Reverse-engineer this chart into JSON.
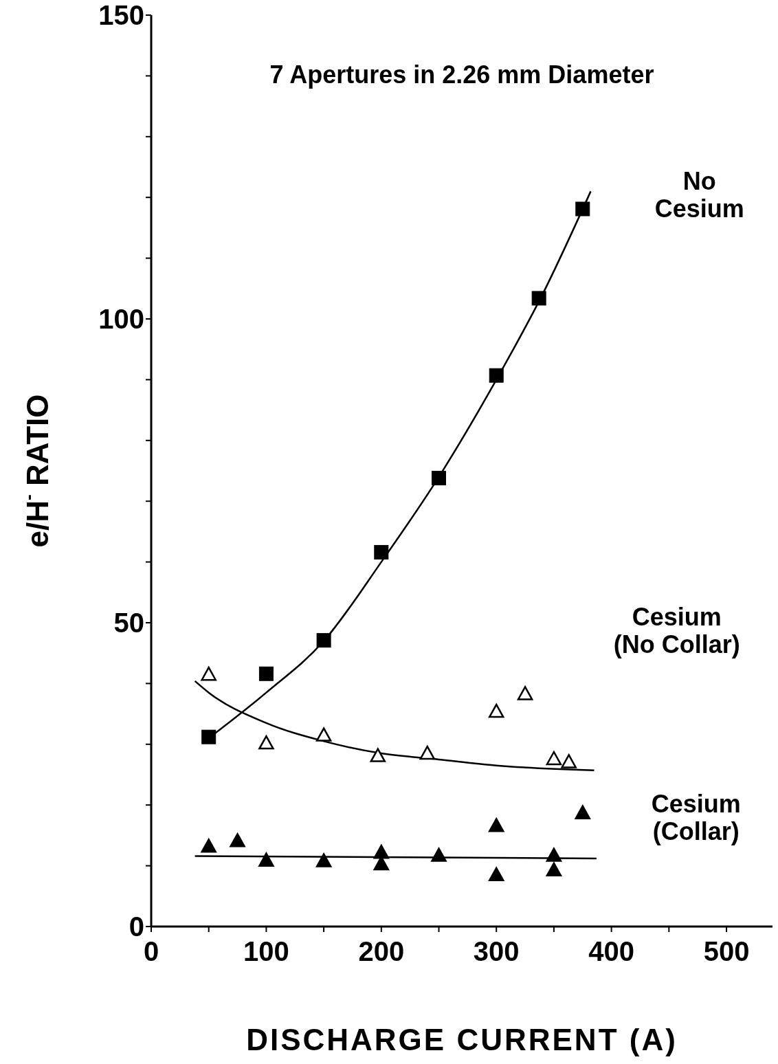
{
  "chart_data": {
    "type": "scatter",
    "title": "7 Apertures in 2.26 mm Diameter",
    "xlabel": "DISCHARGE CURRENT (A)",
    "ylabel": "e/H$^{-}$ RATIO",
    "xlim": [
      0,
      540
    ],
    "xticks": [
      0,
      {
        "value": 50,
        "label": null
      },
      100,
      {
        "value": 150,
        "label": null
      },
      200,
      {
        "value": 250,
        "label": null
      },
      300,
      {
        "value": 350,
        "label": null
      },
      400,
      {
        "value": 450,
        "label": null
      },
      500
    ],
    "ylim": [
      0,
      150
    ],
    "yticks": [
      0,
      {
        "value": 10,
        "label": null
      },
      {
        "value": 20,
        "label": null
      },
      {
        "value": 30,
        "label": null
      },
      {
        "value": 40,
        "label": null
      },
      50,
      {
        "value": 60,
        "label": null
      },
      {
        "value": 70,
        "label": null
      },
      {
        "value": 80,
        "label": null
      },
      {
        "value": 90,
        "label": null
      },
      100,
      {
        "value": 110,
        "label": null
      },
      {
        "value": 120,
        "label": null
      },
      {
        "value": 130,
        "label": null
      },
      {
        "value": 140,
        "label": null
      },
      150
    ],
    "series": [
      {
        "name": "No\nCesium",
        "marker": "square",
        "color": "#000000",
        "x": [
          50,
          100,
          150,
          200,
          250,
          300,
          337,
          375
        ],
        "values": [
          31.2,
          41.6,
          47.1,
          61.6,
          73.8,
          90.7,
          103.4,
          118.1
        ]
      },
      {
        "name": "Cesium\n(No Collar)",
        "marker": "triangle",
        "color": "#ffffff",
        "x": [
          50,
          100,
          150,
          197,
          240,
          300,
          325,
          350,
          363
        ],
        "values": [
          41.5,
          30.2,
          31.5,
          28.1,
          28.5,
          35.4,
          38.3,
          27.6,
          27.1
        ]
      },
      {
        "name": "Cesium\n(Collar)",
        "marker": "triangle",
        "color": "#000000",
        "x": [
          50,
          75,
          100,
          150,
          200,
          200,
          250,
          300,
          300,
          350,
          350,
          375
        ],
        "values": [
          13.2,
          14.1,
          10.9,
          10.8,
          12.2,
          10.3,
          11.7,
          16.6,
          8.5,
          11.7,
          9.3,
          18.7
        ]
      },
      {
        "type": "line",
        "marker": "none",
        "line_style": "solid",
        "color": "#000000",
        "x": [
          50,
          100,
          150,
          200,
          250,
          300,
          340,
          382
        ],
        "values": [
          31,
          38.5,
          47,
          60,
          74,
          90,
          104,
          121
        ]
      },
      {
        "type": "line",
        "marker": "none",
        "line_style": "solid",
        "color": "#000000",
        "x": [
          38,
          50,
          100,
          150,
          200,
          250,
          300,
          385
        ],
        "values": [
          40.4,
          38.5,
          33.5,
          30.5,
          28.5,
          27.5,
          26.5,
          25.7
        ]
      },
      {
        "type": "line",
        "marker": "none",
        "line_style": "solid",
        "color": "#000000",
        "x": [
          38,
          387
        ],
        "values": [
          11.6,
          11.2
        ]
      }
    ]
  }
}
